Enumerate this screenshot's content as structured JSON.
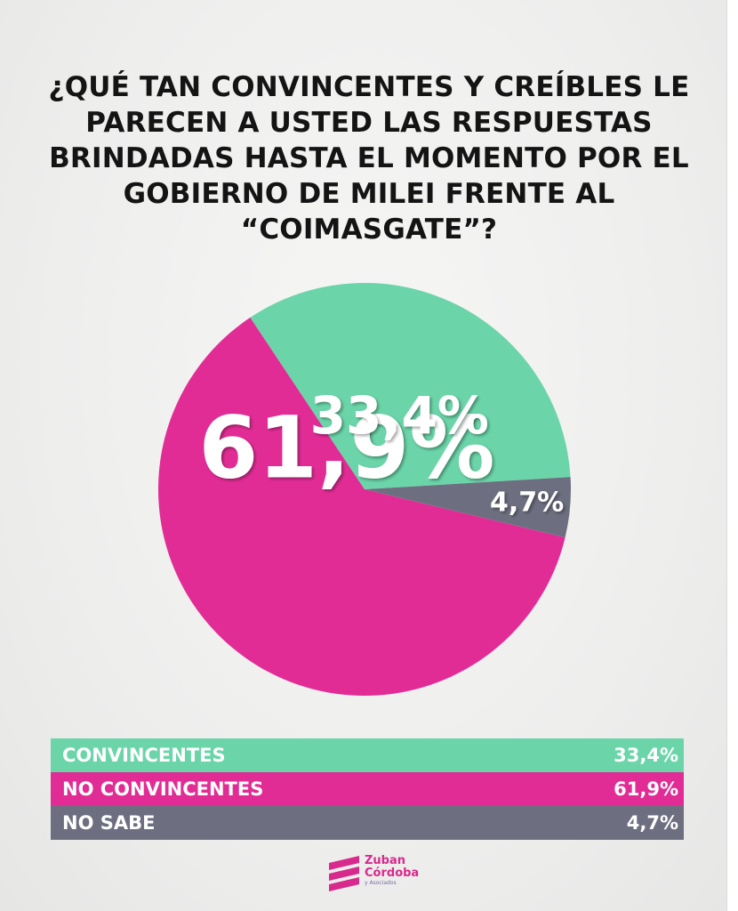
{
  "title_lines": [
    "¿QUÉ TAN CONVINCENTES Y CREÍBLES LE",
    "PARECEN A USTED LAS RESPUESTAS",
    "BRINDADAS HASTA EL MOMENTO POR EL",
    "GOBIERNO DE MILEI FRENTE AL",
    "“COIMASGATE”?"
  ],
  "chart_data": {
    "type": "pie",
    "title": "¿QUÉ TAN CONVINCENTES Y CREÍBLES LE PARECEN A USTED LAS RESPUESTAS BRINDADAS HASTA EL MOMENTO POR EL GOBIERNO DE MILEI FRENTE AL “COIMASGATE”?",
    "slices": [
      {
        "name": "NO CONVINCENTES",
        "value": 61.9,
        "label": "61,9%",
        "color": "#e22c95"
      },
      {
        "name": "CONVINCENTES",
        "value": 33.4,
        "label": "33,4%",
        "color": "#6bd5a9"
      },
      {
        "name": "NO SABE",
        "value": 4.7,
        "label": "4,7%",
        "color": "#6d6f80"
      }
    ],
    "legend_placement": "bottom"
  },
  "legend": [
    {
      "label": "CONVINCENTES",
      "value": "33,4%",
      "color": "#6bd5a9"
    },
    {
      "label": "NO CONVINCENTES",
      "value": "61,9%",
      "color": "#e22c95"
    },
    {
      "label": "NO SABE",
      "value": "4,7%",
      "color": "#6d6f80"
    }
  ],
  "logo": {
    "line1": "Zuban",
    "line2": "Córdoba",
    "line3": "y Asociados",
    "color": "#d72a8c"
  }
}
